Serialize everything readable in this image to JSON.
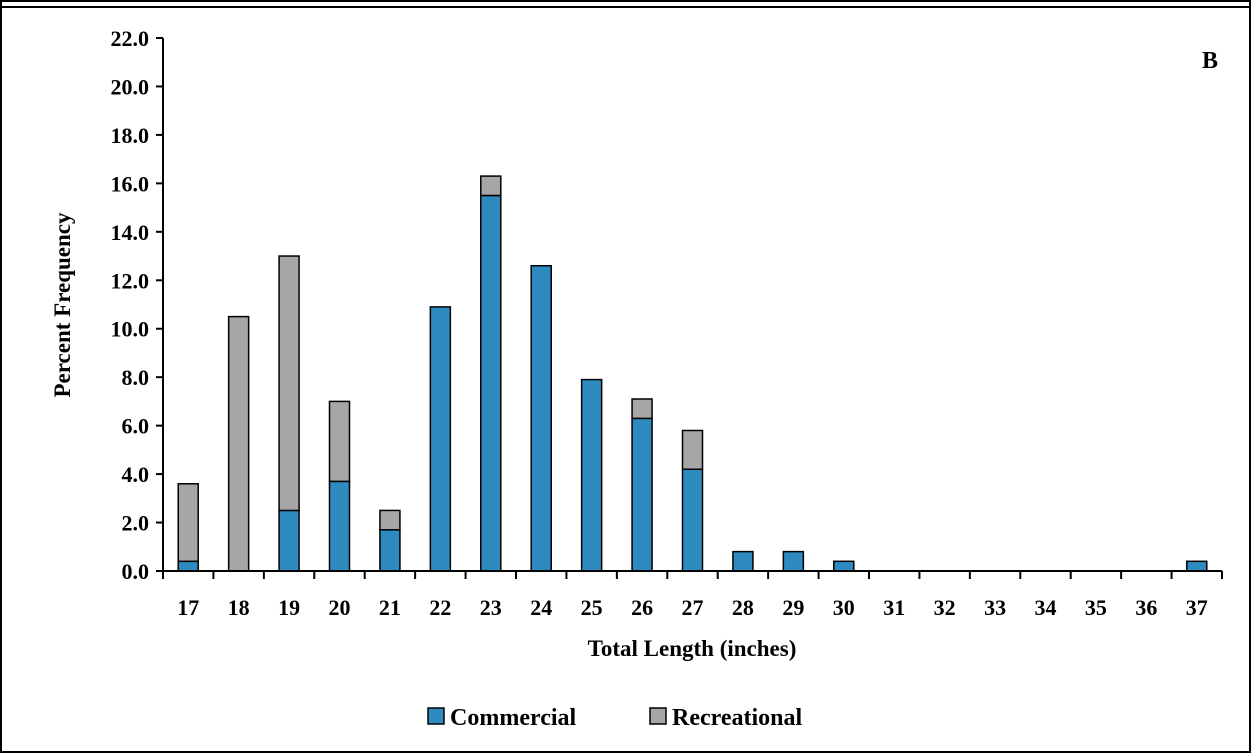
{
  "chart_data": {
    "type": "bar",
    "stacked": true,
    "panel_label": "B",
    "xlabel": "Total Length (inches)",
    "ylabel": "Percent Frequency",
    "ylim": [
      0,
      22
    ],
    "yticks": [
      "0.0",
      "2.0",
      "4.0",
      "6.0",
      "8.0",
      "10.0",
      "12.0",
      "14.0",
      "16.0",
      "18.0",
      "20.0",
      "22.0"
    ],
    "categories": [
      "17",
      "18",
      "19",
      "20",
      "21",
      "22",
      "23",
      "24",
      "25",
      "26",
      "27",
      "28",
      "29",
      "30",
      "31",
      "32",
      "33",
      "34",
      "35",
      "36",
      "37"
    ],
    "series": [
      {
        "name": "Commercial",
        "color": "#2e8bc0",
        "values": [
          0.4,
          0.0,
          2.5,
          3.7,
          1.7,
          10.9,
          15.5,
          12.6,
          7.9,
          6.3,
          4.2,
          0.8,
          0.8,
          0.4,
          0,
          0,
          0,
          0,
          0,
          0,
          0.4
        ]
      },
      {
        "name": "Recreational",
        "color": "#a6a6a6",
        "values": [
          3.2,
          10.5,
          10.5,
          3.3,
          0.8,
          0.0,
          0.8,
          0.0,
          0.0,
          0.8,
          1.6,
          0,
          0,
          0,
          0,
          0,
          0,
          0,
          0,
          0,
          0
        ]
      }
    ],
    "grid": false,
    "legend_position": "bottom"
  }
}
